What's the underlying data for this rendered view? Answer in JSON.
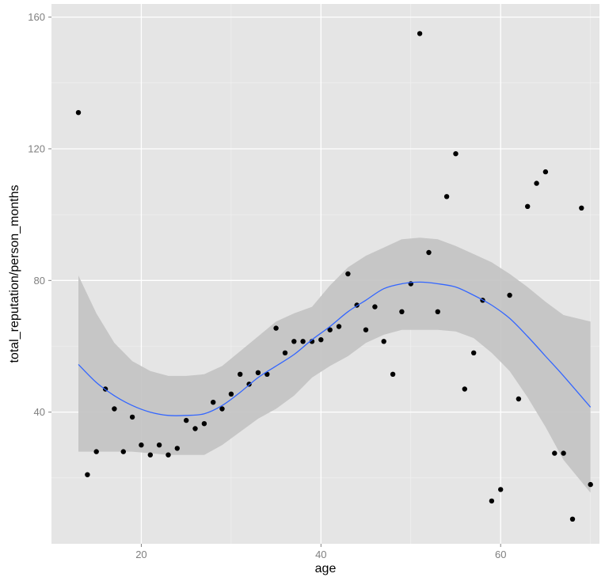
{
  "chart_data": {
    "type": "scatter",
    "xlabel": "age",
    "ylabel": "total_reputation/person_months",
    "xlim": [
      10,
      71
    ],
    "ylim": [
      0,
      164
    ],
    "x_ticks": [
      20,
      40,
      60
    ],
    "y_ticks": [
      40,
      80,
      120,
      160
    ],
    "grid": true,
    "background": "#e5e5e5",
    "point_color": "#000000",
    "smooth_color": "#3366ff",
    "band_color": "#c2c2c2",
    "points": [
      {
        "x": 13,
        "y": 131
      },
      {
        "x": 14,
        "y": 21
      },
      {
        "x": 15,
        "y": 28
      },
      {
        "x": 16,
        "y": 47
      },
      {
        "x": 17,
        "y": 41
      },
      {
        "x": 18,
        "y": 28
      },
      {
        "x": 19,
        "y": 38.5
      },
      {
        "x": 20,
        "y": 30
      },
      {
        "x": 21,
        "y": 27
      },
      {
        "x": 22,
        "y": 30
      },
      {
        "x": 23,
        "y": 27
      },
      {
        "x": 24,
        "y": 29
      },
      {
        "x": 25,
        "y": 37.5
      },
      {
        "x": 26,
        "y": 35
      },
      {
        "x": 27,
        "y": 36.5
      },
      {
        "x": 28,
        "y": 43
      },
      {
        "x": 29,
        "y": 41
      },
      {
        "x": 30,
        "y": 45.5
      },
      {
        "x": 31,
        "y": 51.5
      },
      {
        "x": 32,
        "y": 48.5
      },
      {
        "x": 33,
        "y": 52
      },
      {
        "x": 34,
        "y": 51.5
      },
      {
        "x": 35,
        "y": 65.5
      },
      {
        "x": 36,
        "y": 58
      },
      {
        "x": 37,
        "y": 61.5
      },
      {
        "x": 38,
        "y": 61.5
      },
      {
        "x": 39,
        "y": 61.5
      },
      {
        "x": 40,
        "y": 62
      },
      {
        "x": 41,
        "y": 65
      },
      {
        "x": 42,
        "y": 66
      },
      {
        "x": 43,
        "y": 82
      },
      {
        "x": 44,
        "y": 72.5
      },
      {
        "x": 45,
        "y": 65
      },
      {
        "x": 46,
        "y": 72
      },
      {
        "x": 47,
        "y": 61.5
      },
      {
        "x": 48,
        "y": 51.5
      },
      {
        "x": 49,
        "y": 70.5
      },
      {
        "x": 50,
        "y": 79
      },
      {
        "x": 51,
        "y": 155
      },
      {
        "x": 52,
        "y": 88.5
      },
      {
        "x": 53,
        "y": 70.5
      },
      {
        "x": 54,
        "y": 105.5
      },
      {
        "x": 55,
        "y": 118.5
      },
      {
        "x": 56,
        "y": 47
      },
      {
        "x": 57,
        "y": 58
      },
      {
        "x": 58,
        "y": 74
      },
      {
        "x": 59,
        "y": 13
      },
      {
        "x": 60,
        "y": 16.5
      },
      {
        "x": 61,
        "y": 75.5
      },
      {
        "x": 62,
        "y": 44
      },
      {
        "x": 63,
        "y": 102.5
      },
      {
        "x": 64,
        "y": 109.5
      },
      {
        "x": 65,
        "y": 113
      },
      {
        "x": 66,
        "y": 27.5
      },
      {
        "x": 67,
        "y": 27.5
      },
      {
        "x": 68,
        "y": 7.5
      },
      {
        "x": 69,
        "y": 102
      },
      {
        "x": 70,
        "y": 18
      }
    ],
    "smooth": {
      "x": [
        13,
        15,
        17,
        19,
        21,
        23,
        25,
        27,
        29,
        31,
        33,
        35,
        37,
        39,
        41,
        43,
        45,
        47,
        49,
        51,
        53,
        55,
        57,
        59,
        61,
        63,
        65,
        67,
        70
      ],
      "y": [
        54.5,
        49,
        45,
        42,
        40,
        39,
        39,
        39.5,
        42,
        46,
        50.5,
        54,
        57.5,
        62,
        66,
        70.5,
        74,
        77.5,
        79,
        79.5,
        79,
        78,
        75.5,
        72.5,
        68.5,
        63,
        57,
        51,
        41.5
      ],
      "upper": [
        81.5,
        70,
        61,
        55.5,
        52.5,
        51,
        51,
        51.5,
        54,
        58.5,
        63,
        67.5,
        70,
        72,
        78.5,
        84,
        87.5,
        90,
        92.5,
        93,
        92.5,
        90.5,
        88,
        85.5,
        82,
        78,
        73.5,
        69.5,
        67.5
      ],
      "lower": [
        28,
        28,
        28,
        28,
        27.5,
        27,
        27,
        27,
        30,
        34,
        38,
        41,
        45,
        50.5,
        54,
        57,
        61,
        63.5,
        65,
        65,
        65,
        64.5,
        62.5,
        58,
        52.5,
        44.5,
        35.5,
        25.5,
        15.5
      ]
    }
  }
}
